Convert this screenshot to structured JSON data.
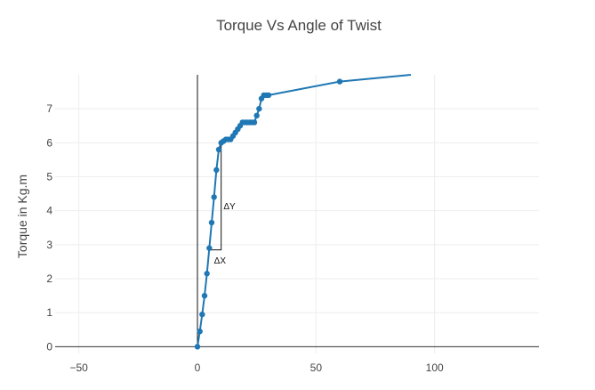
{
  "chart_data": {
    "type": "scatter",
    "mode": "lines+markers",
    "title": "Torque Vs Angle of Twist",
    "xlabel": "",
    "ylabel": "Torque in Kg.m",
    "xlim": [
      -60,
      144
    ],
    "ylim": [
      -0.2,
      8.0
    ],
    "xticks": [
      -50,
      0,
      50,
      100
    ],
    "yticks": [
      0,
      1,
      2,
      3,
      4,
      5,
      6,
      7
    ],
    "x_tick_labels": [
      "−50",
      "0",
      "50",
      "100"
    ],
    "y_tick_labels": [
      "0",
      "1",
      "2",
      "3",
      "4",
      "5",
      "6",
      "7"
    ],
    "grid": true,
    "series": [
      {
        "color": "#1f77b4",
        "x": [
          0,
          1,
          2,
          3,
          4,
          5,
          6,
          7,
          8,
          9,
          10,
          11,
          12,
          13,
          14,
          15,
          16,
          17,
          18,
          19,
          20,
          21,
          22,
          23,
          24,
          25,
          26,
          27,
          28,
          29,
          30,
          60,
          90
        ],
        "y": [
          0,
          0.45,
          0.95,
          1.5,
          2.15,
          2.9,
          3.65,
          4.4,
          5.2,
          5.8,
          6.0,
          6.05,
          6.1,
          6.1,
          6.1,
          6.2,
          6.3,
          6.4,
          6.5,
          6.6,
          6.6,
          6.6,
          6.6,
          6.6,
          6.6,
          6.8,
          7.0,
          7.3,
          7.4,
          7.4,
          7.4,
          7.8,
          8.0
        ],
        "markers": [
          true,
          true,
          true,
          true,
          true,
          true,
          true,
          true,
          true,
          true,
          true,
          true,
          true,
          true,
          true,
          true,
          true,
          true,
          true,
          true,
          true,
          true,
          true,
          true,
          true,
          true,
          true,
          true,
          true,
          true,
          true,
          true,
          false
        ]
      }
    ],
    "annotations": [
      {
        "text": "ΔY",
        "x": 13.5,
        "y": 4.05
      },
      {
        "text": "ΔX",
        "x": 9.5,
        "y": 2.45
      }
    ],
    "reference_lines": {
      "vertical_axis_line_x": 0,
      "slope_triangle": {
        "x0": 5,
        "x1": 10,
        "y0": 2.85,
        "y1": 6.0
      }
    }
  }
}
